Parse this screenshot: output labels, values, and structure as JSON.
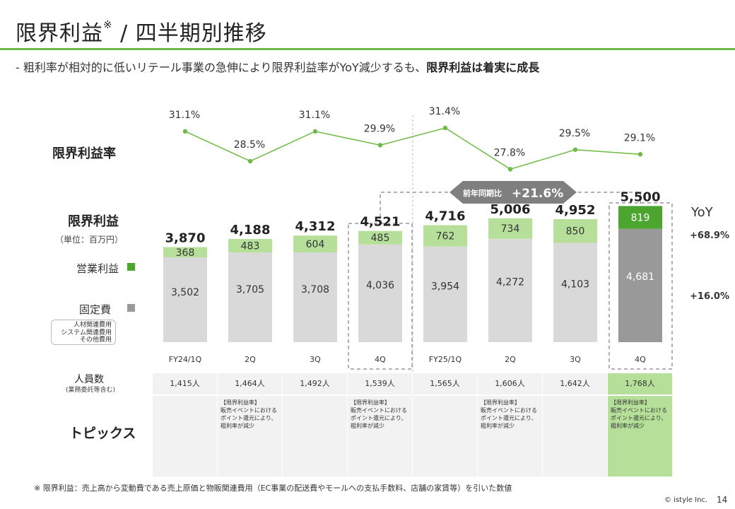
{
  "header": {
    "title": "限界利益",
    "title_mark": "※",
    "title_suffix": " / 四半期別推移",
    "subtitle_plain": "-  粗利率が相対的に低いリテール事業の急伸により限界利益率がYoY減少するも、",
    "subtitle_bold": "限界利益は着実に成長"
  },
  "labels": {
    "margin_rate": "限界利益率",
    "margin_profit": "限界利益",
    "unit": "（単位：百万円）",
    "operating_profit": "営業利益",
    "fixed_cost": "固定費",
    "fixed_cost_sub": [
      "人材関連費用",
      "システム関連費用",
      "その他費用"
    ],
    "headcount": "人員数",
    "headcount_sub": "(業務委託等含む)",
    "topics": "トピックス",
    "yoy": "YoY",
    "compare_prefix": "前年同期比",
    "compare_value": "+21.6%"
  },
  "colors": {
    "accent": "#6dbb45",
    "op_light": "#b6e09a",
    "op_dark": "#4ba52e",
    "fixed_light": "#d9d9d9",
    "fixed_dark": "#999999",
    "line": "#6dbb45",
    "arrow": "#7f7f7f"
  },
  "chart_data": {
    "type": "bar",
    "categories": [
      "FY24/1Q",
      "2Q",
      "3Q",
      "4Q",
      "FY25/1Q",
      "2Q",
      "3Q",
      "4Q"
    ],
    "series": [
      {
        "name": "固定費",
        "values": [
          3502,
          3705,
          3708,
          4036,
          3954,
          4272,
          4103,
          4681
        ]
      },
      {
        "name": "営業利益",
        "values": [
          368,
          483,
          604,
          485,
          762,
          734,
          850,
          819
        ]
      }
    ],
    "totals": [
      "3,870",
      "4,188",
      "4,312",
      "4,521",
      "4,716",
      "5,006",
      "4,952",
      "5,500"
    ],
    "fixed_labels": [
      "3,502",
      "3,705",
      "3,708",
      "4,036",
      "3,954",
      "4,272",
      "4,103",
      "4,681"
    ],
    "op_labels": [
      "368",
      "483",
      "604",
      "485",
      "762",
      "734",
      "850",
      "819"
    ],
    "line": {
      "name": "限界利益率",
      "values": [
        31.1,
        28.5,
        31.1,
        29.9,
        31.4,
        27.8,
        29.5,
        29.1
      ],
      "labels": [
        "31.1%",
        "28.5%",
        "31.1%",
        "29.9%",
        "31.4%",
        "27.8%",
        "29.5%",
        "29.1%"
      ]
    },
    "yoy": {
      "operating_profit": "+68.9%",
      "fixed_cost": "+16.0%"
    }
  },
  "table": {
    "headcount": [
      "1,415人",
      "1,464人",
      "1,492人",
      "1,539人",
      "1,565人",
      "1,606人",
      "1,642人",
      "1,768人"
    ],
    "topics": [
      "",
      "【限界利益率】\n販売イベントにおける\nポイント還元により、\n粗利率が減少",
      "",
      "【限界利益率】\n販売イベントにおける\nポイント還元により、\n粗利率が減少",
      "",
      "【限界利益率】\n販売イベントにおける\nポイント還元により、\n粗利率が減少",
      "",
      "【限界利益率】\n販売イベントにおける\nポイント還元により、\n粗利率が減少"
    ]
  },
  "footer": {
    "footnote": "※ 限界利益：売上高から変動費である売上原価と物販関連費用（EC事業の配送費やモールへの支払手数料、店舗の家賃等）を引いた数値",
    "copyright": "©  istyle Inc.",
    "page": "14"
  }
}
